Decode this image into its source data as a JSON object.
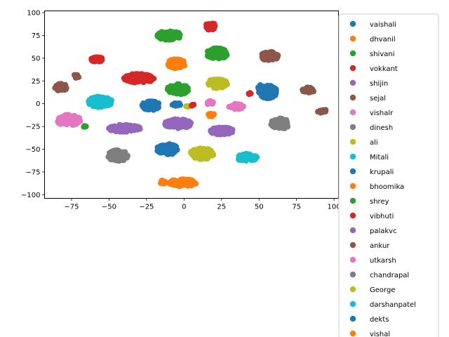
{
  "chart_data": {
    "type": "scatter",
    "title": "",
    "xlabel": "",
    "ylabel": "",
    "xlim": [
      -93,
      103
    ],
    "ylim": [
      -104,
      102
    ],
    "x_ticks": [
      -75,
      -50,
      -25,
      0,
      25,
      50,
      75,
      100
    ],
    "y_ticks": [
      -100,
      -75,
      -50,
      -25,
      0,
      25,
      50,
      75,
      100
    ],
    "x_tick_labels": [
      "−75",
      "−50",
      "−25",
      "0",
      "25",
      "50",
      "75",
      "100"
    ],
    "y_tick_labels": [
      "−100",
      "−75",
      "−50",
      "−25",
      "0",
      "25",
      "50",
      "75",
      "100"
    ],
    "grid": false,
    "legend_position": "outside-right",
    "series": [
      {
        "name": "vaishali",
        "color": "#1f77b4",
        "clusters": [
          [
            -22,
            -2,
            6,
            5
          ],
          [
            -5,
            -1,
            3,
            2
          ]
        ]
      },
      {
        "name": "dhvanil",
        "color": "#ff7f0e",
        "clusters": [
          [
            -5,
            44,
            6,
            5
          ],
          [
            18,
            -12,
            2,
            2
          ]
        ]
      },
      {
        "name": "shivani",
        "color": "#2ca02c",
        "clusters": [
          [
            -10,
            75,
            8,
            5
          ],
          [
            -66,
            -25,
            1,
            1
          ]
        ]
      },
      {
        "name": "vokkant",
        "color": "#d62728",
        "clusters": [
          [
            -30,
            28,
            10,
            5
          ],
          [
            44,
            11,
            1,
            1
          ]
        ]
      },
      {
        "name": "shijin",
        "color": "#9467bd",
        "clusters": [
          [
            -40,
            -27,
            11,
            4
          ]
        ]
      },
      {
        "name": "sejal",
        "color": "#8c564b",
        "clusters": [
          [
            57,
            52,
            6,
            5
          ]
        ]
      },
      {
        "name": "vishalr",
        "color": "#e377c2",
        "clusters": [
          [
            -77,
            -18,
            8,
            6
          ]
        ]
      },
      {
        "name": "dinesh",
        "color": "#7f7f7f",
        "clusters": [
          [
            -44,
            -57,
            7,
            6
          ]
        ]
      },
      {
        "name": "ali",
        "color": "#bcbd22",
        "clusters": [
          [
            12,
            -55,
            8,
            6
          ],
          [
            2,
            -3,
            1,
            1
          ]
        ]
      },
      {
        "name": "Mitali",
        "color": "#17becf",
        "clusters": [
          [
            -56,
            2,
            8,
            6
          ]
        ]
      },
      {
        "name": "krupali",
        "color": "#1f77b4",
        "clusters": [
          [
            -11,
            -50,
            7,
            6
          ],
          [
            56,
            13,
            6,
            7
          ]
        ]
      },
      {
        "name": "bhoomika",
        "color": "#ff7f0e",
        "clusters": [
          [
            -1,
            -87,
            9,
            4
          ]
        ]
      },
      {
        "name": "shrey",
        "color": "#2ca02c",
        "clusters": [
          [
            -4,
            16,
            7,
            6
          ],
          [
            22,
            55,
            7,
            6
          ]
        ]
      },
      {
        "name": "vibhuti",
        "color": "#d62728",
        "clusters": [
          [
            18,
            85,
            4,
            4
          ],
          [
            -58,
            49,
            4,
            3
          ],
          [
            6,
            -2,
            1,
            1
          ]
        ]
      },
      {
        "name": "palakvc",
        "color": "#9467bd",
        "clusters": [
          [
            -4,
            -22,
            9,
            5
          ],
          [
            25,
            -30,
            8,
            4
          ]
        ]
      },
      {
        "name": "ankur",
        "color": "#8c564b",
        "clusters": [
          [
            -82,
            18,
            4,
            4
          ],
          [
            -72,
            30,
            2,
            2
          ],
          [
            83,
            15,
            4,
            3
          ],
          [
            92,
            -8,
            3,
            2
          ]
        ]
      },
      {
        "name": "utkarsh",
        "color": "#e377c2",
        "clusters": [
          [
            35,
            -3,
            5,
            3
          ],
          [
            17,
            1,
            3,
            2
          ]
        ]
      },
      {
        "name": "chandrapal",
        "color": "#7f7f7f",
        "clusters": [
          [
            64,
            -22,
            6,
            6
          ]
        ]
      },
      {
        "name": "George",
        "color": "#bcbd22",
        "clusters": [
          [
            22,
            22,
            7,
            5
          ]
        ]
      },
      {
        "name": "darshanpatel",
        "color": "#17becf",
        "clusters": [
          [
            42,
            -59,
            7,
            4
          ]
        ]
      },
      {
        "name": "dekts",
        "color": "#1f77b4",
        "clusters": [
          [
            52,
            18,
            3,
            3
          ]
        ]
      },
      {
        "name": "vishal",
        "color": "#ff7f0e",
        "clusters": [
          [
            -14,
            -86,
            2,
            2
          ]
        ]
      }
    ]
  }
}
